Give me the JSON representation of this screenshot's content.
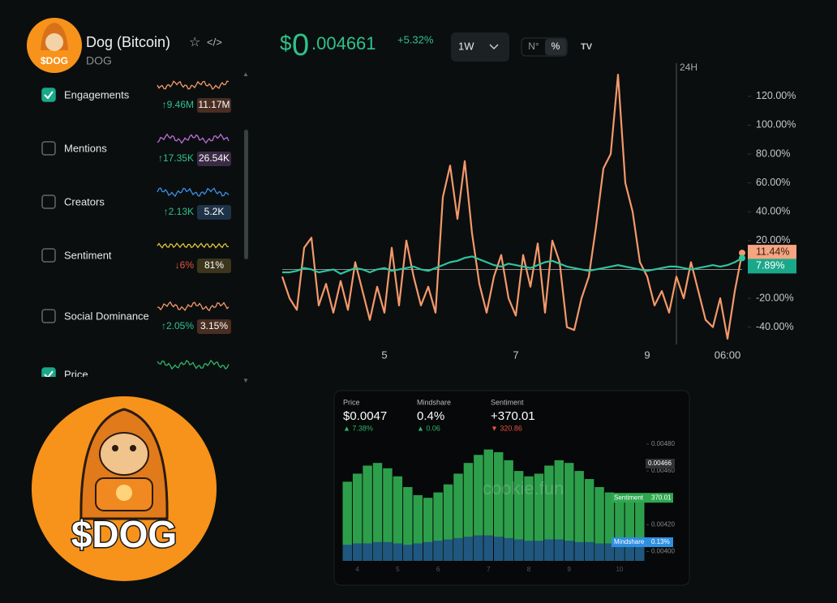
{
  "header": {
    "name": "Dog (Bitcoin)",
    "ticker": "DOG",
    "price_symbol": "$",
    "price_whole": "0",
    "price_fraction": ".004661",
    "price_change": "+5.32%",
    "timeframe": "1W",
    "mode_number": "N°",
    "mode_percent": "%",
    "logo_text": "$DOG"
  },
  "metrics": [
    {
      "name": "Engagements",
      "change": "↑9.46M",
      "value": "11.17M",
      "checked": true,
      "color": "#f4996b",
      "tag_color": "#4a2e22"
    },
    {
      "name": "Mentions",
      "change": "↑17.35K",
      "value": "26.54K",
      "checked": false,
      "color": "#b86fd8",
      "tag_color": "#3a2a44"
    },
    {
      "name": "Creators",
      "change": "↑2.13K",
      "value": "5.2K",
      "checked": false,
      "color": "#3b8fe2",
      "tag_color": "#1f3348"
    },
    {
      "name": "Sentiment",
      "change": "↓6%",
      "value": "81%",
      "checked": false,
      "color": "#e2c23c",
      "tag_color": "#3b361c"
    },
    {
      "name": "Social Dominance",
      "change": "↑2.05%",
      "value": "3.15%",
      "checked": false,
      "color": "#f4996b",
      "tag_color": "#4a2e22"
    },
    {
      "name": "Price",
      "checked": true,
      "color": "#2fb56d"
    }
  ],
  "chart_data": [
    {
      "type": "line",
      "categories": [
        null,
        null,
        null,
        null,
        null,
        null,
        null,
        null,
        null,
        null,
        null,
        null,
        null,
        null,
        "5",
        null,
        null,
        null,
        null,
        null,
        null,
        null,
        null,
        null,
        null,
        null,
        null,
        null,
        null,
        null,
        null,
        null,
        "7",
        null,
        null,
        null,
        null,
        null,
        null,
        null,
        null,
        null,
        null,
        null,
        null,
        null,
        null,
        null,
        null,
        null,
        "9",
        null,
        null,
        null,
        null,
        null,
        null,
        null,
        null,
        null,
        null,
        "06:00",
        null,
        null
      ],
      "series": [
        {
          "name": "Engagements",
          "color": "#f4996b",
          "values": [
            -5,
            -20,
            -28,
            15,
            22,
            -25,
            -10,
            -30,
            -8,
            -28,
            5,
            -15,
            -35,
            -12,
            -30,
            15,
            -25,
            20,
            -5,
            -25,
            -12,
            -30,
            50,
            72,
            35,
            75,
            25,
            -10,
            -30,
            -5,
            10,
            -20,
            -32,
            10,
            -12,
            18,
            -30,
            20,
            5,
            -40,
            -42,
            -20,
            -5,
            30,
            70,
            80,
            135,
            60,
            40,
            5,
            -5,
            -25,
            -15,
            -30,
            -5,
            -20,
            5,
            -15,
            -35,
            -40,
            -20,
            -48,
            -15,
            11.44
          ]
        },
        {
          "name": "Price",
          "color": "#2ec4a0",
          "values": [
            -2,
            -2,
            -1,
            1,
            0,
            -2,
            -1,
            0,
            -3,
            -1,
            1,
            0,
            -2,
            0,
            1,
            -1,
            0,
            1,
            2,
            0,
            -1,
            1,
            3,
            5,
            6,
            8,
            9,
            7,
            5,
            3,
            2,
            4,
            3,
            2,
            1,
            3,
            5,
            6,
            4,
            2,
            1,
            0,
            -1,
            0,
            1,
            2,
            3,
            2,
            1,
            0,
            -1,
            0,
            1,
            2,
            2,
            1,
            0,
            1,
            2,
            3,
            2,
            3,
            5,
            7.89
          ]
        }
      ],
      "ylim": [
        -52,
        139
      ],
      "yticks": [
        {
          "value": 120,
          "label": "120.00%"
        },
        {
          "value": 100,
          "label": "100.00%"
        },
        {
          "value": 80,
          "label": "80.00%"
        },
        {
          "value": 60,
          "label": "60.00%"
        },
        {
          "value": 40,
          "label": "40.00%"
        },
        {
          "value": 20,
          "label": "20.00%"
        },
        {
          "value": -20,
          "label": "-20.00%"
        },
        {
          "value": -40,
          "label": "-40.00%"
        }
      ],
      "annotations": [
        {
          "text": "24H"
        },
        {
          "text": "11.44%"
        },
        {
          "text": "7.89%"
        }
      ]
    },
    {
      "type": "bar",
      "stats": [
        {
          "label": "Price",
          "value": "$0.0047",
          "change": "▲ 7.38%",
          "color": "#2fb56d"
        },
        {
          "label": "Mindshare",
          "value": "0.4%",
          "change": "▲ 0.06",
          "color": "#2fb56d"
        },
        {
          "label": "Sentiment",
          "value": "+370.01",
          "change": "▼ 320.86",
          "color": "#e5533d"
        }
      ],
      "watermark": "cookie.fun",
      "categories": [
        null,
        "4",
        null,
        null,
        null,
        "5",
        null,
        null,
        null,
        "6",
        null,
        null,
        null,
        null,
        "7",
        null,
        null,
        null,
        "8",
        null,
        null,
        null,
        "9",
        null,
        null,
        null,
        null,
        "10",
        null,
        null
      ],
      "series": [
        {
          "name": "Sentiment",
          "color": "#2fa84f",
          "values": [
            0.00452,
            0.00458,
            0.00464,
            0.00466,
            0.00462,
            0.00456,
            0.00448,
            0.00442,
            0.0044,
            0.00444,
            0.0045,
            0.00458,
            0.00466,
            0.00472,
            0.00476,
            0.00474,
            0.00468,
            0.0046,
            0.00456,
            0.00458,
            0.00464,
            0.00468,
            0.00466,
            0.0046,
            0.00454,
            0.00448,
            0.00444,
            0.00442,
            0.00442,
            0.0044
          ]
        },
        {
          "name": "Mindshare",
          "color": "#1f4f86",
          "values": [
            0.00405,
            0.00406,
            0.00406,
            0.00407,
            0.00407,
            0.00406,
            0.00405,
            0.00406,
            0.00407,
            0.00408,
            0.00409,
            0.0041,
            0.00411,
            0.00412,
            0.00412,
            0.00411,
            0.0041,
            0.00409,
            0.00408,
            0.00408,
            0.00409,
            0.00409,
            0.00408,
            0.00407,
            0.00407,
            0.00406,
            0.00406,
            0.00405,
            0.00405,
            0.00405
          ]
        }
      ],
      "ylim": [
        0.00393,
        0.0048
      ],
      "yticks": [
        {
          "value": 0.0048,
          "label": "0.00480"
        },
        {
          "value": 0.0046,
          "label": "0.00460"
        },
        {
          "value": 0.0042,
          "label": "0.00420"
        },
        {
          "value": 0.004,
          "label": "0.00400"
        }
      ],
      "annotations": [
        {
          "text": "0.00466"
        },
        {
          "text": "370.01"
        },
        {
          "text": "0.13%"
        }
      ]
    }
  ]
}
